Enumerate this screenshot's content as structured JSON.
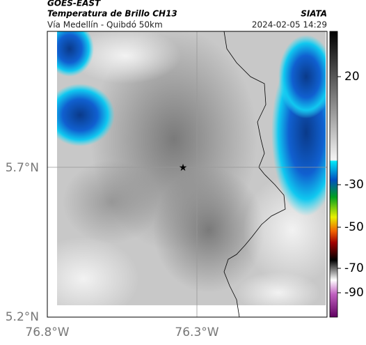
{
  "header": {
    "title": "GOES-EAST",
    "subtitle": "Temperatura de Brillo CH13",
    "source": "SIATA",
    "route": "Vía Medellín - Quibdó 50km",
    "timestamp": "2024-02-05 14:29"
  },
  "map": {
    "lat_labels": [
      "5.7°N",
      "5.2°N"
    ],
    "lon_labels": [
      "76.8°W",
      "76.3°W"
    ]
  },
  "colorbar": {
    "ticks": [
      20,
      -30,
      -50,
      -70,
      -90
    ]
  }
}
